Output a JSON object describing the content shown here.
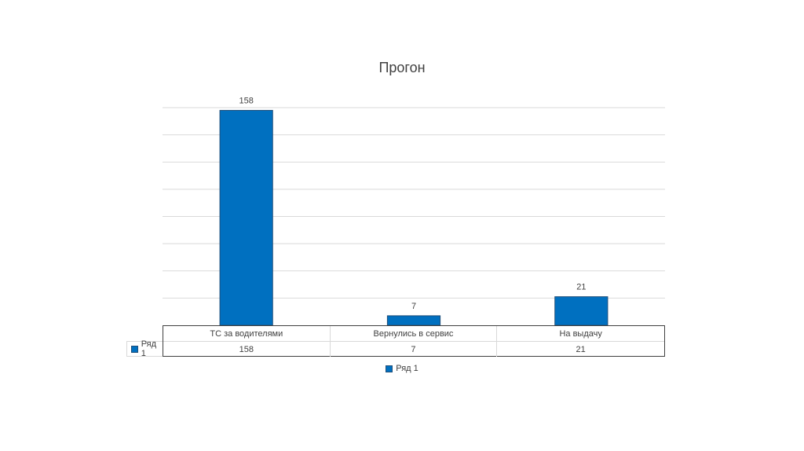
{
  "chart_data": {
    "type": "bar",
    "title": "Прогон",
    "categories": [
      "ТС за водителями",
      "Вернулись в сервис",
      "На выдачу"
    ],
    "series": [
      {
        "name": "Ряд 1",
        "values": [
          158,
          7,
          21
        ],
        "color": "#0070c0"
      }
    ],
    "ylim": [
      0,
      160
    ],
    "grid": true,
    "legend": "bottom",
    "data_table": true
  }
}
